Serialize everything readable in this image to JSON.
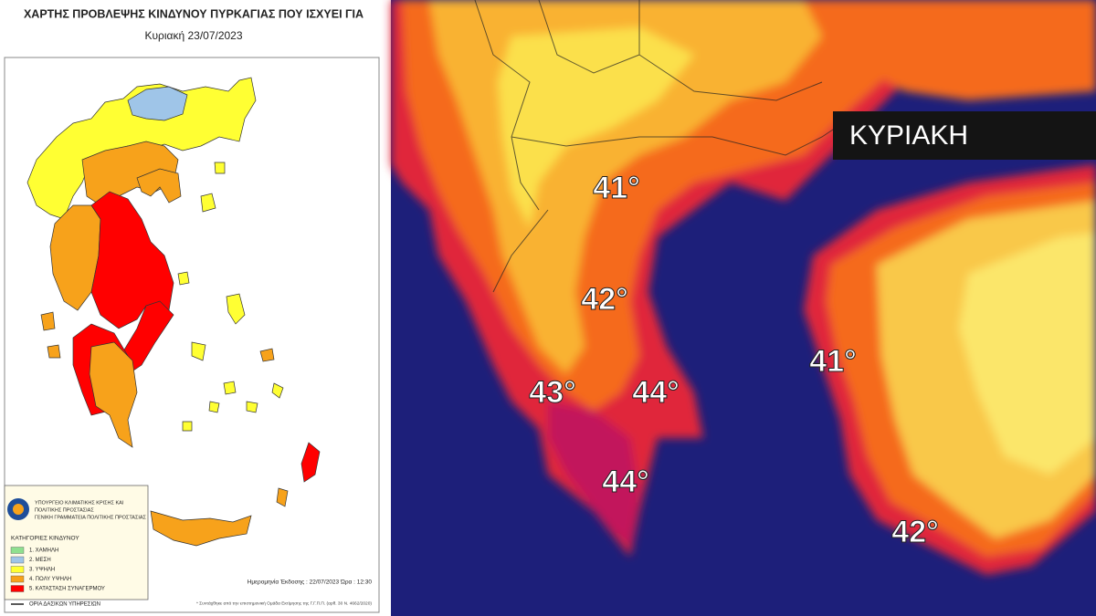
{
  "left_map": {
    "title": "ΧΑΡΤΗΣ ΠΡΟΒΛΕΨΗΣ ΚΙΝΔΥΝΟΥ ΠΥΡΚΑΓΙΑΣ ΠΟΥ ΙΣΧΥΕΙ ΓΙΑ",
    "subtitle": "Κυριακή 23/07/2023",
    "ministry": [
      "ΥΠΟΥΡΓΕΙΟ ΚΛΙΜΑΤΙΚΗΣ ΚΡΙΣΗΣ ΚΑΙ",
      "ΠΟΛΙΤΙΚΗΣ ΠΡΟΣΤΑΣΙΑΣ",
      "ΓΕΝΙΚΗ ΓΡΑΜΜΑΤΕΙΑ ΠΟΛΙΤΙΚΗΣ ΠΡΟΣΤΑΣΙΑΣ"
    ],
    "legend": {
      "title": "ΚΑΤΗΓΟΡΙΕΣ ΚΙΝΔΥΝΟΥ",
      "items": [
        {
          "label": "1. ΧΑΜΗΛΗ",
          "color": "#8fe08f"
        },
        {
          "label": "2. ΜΕΣΗ",
          "color": "#9fc5e8"
        },
        {
          "label": "3. ΥΨΗΛΗ",
          "color": "#ffff33"
        },
        {
          "label": "4. ΠΟΛΥ ΥΨΗΛΗ",
          "color": "#f7a21b"
        },
        {
          "label": "5. ΚΑΤΑΣΤΑΣΗ ΣΥΝΑΓΕΡΜΟΥ",
          "color": "#ff0000"
        }
      ],
      "boundary_label": "ΟΡΙΑ ΔΑΣΙΚΩΝ ΥΠΗΡΕΣΙΩΝ"
    },
    "issue_date": "Ημερομηνία Έκδοσης : 22/07/2023   Ώρα : 12:30",
    "footnote": "* Συντάχθηκε από την επιστημονική Ομάδα Εκτίμησης της Γ.Γ.Π.Π. (αρθ. 30 Ν. 4662/2020)"
  },
  "right_map": {
    "day_label": "ΚΥΡΙΑΚΗ",
    "temperatures": [
      "41°",
      "42°",
      "43°",
      "44°",
      "44°",
      "41°",
      "42°"
    ]
  }
}
